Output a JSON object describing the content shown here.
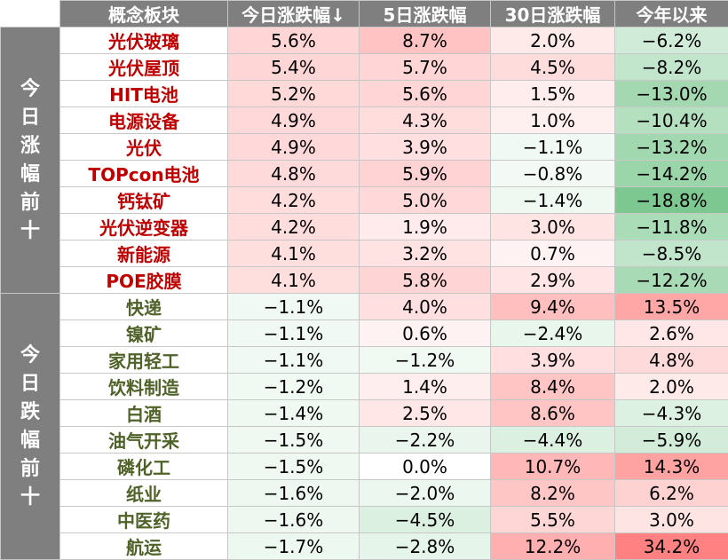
{
  "header": {
    "col_sector": "概念板块",
    "col_today": "今日涨跌幅↓",
    "col_5d": "5日涨跌幅",
    "col_30d": "30日涨跌幅",
    "col_ytd": "今年以来"
  },
  "groups": [
    {
      "label": [
        "今",
        "日",
        "涨",
        "幅",
        "前",
        "十"
      ],
      "kind": "gain",
      "rows": [
        {
          "name": "光伏玻璃",
          "today": "5.6%",
          "d5": "8.7%",
          "d30": "2.0%",
          "ytd": "−6.2%"
        },
        {
          "name": "光伏屋顶",
          "today": "5.4%",
          "d5": "5.7%",
          "d30": "4.5%",
          "ytd": "−8.2%"
        },
        {
          "name": "HIT电池",
          "today": "5.2%",
          "d5": "5.6%",
          "d30": "1.5%",
          "ytd": "−13.0%"
        },
        {
          "name": "电源设备",
          "today": "4.9%",
          "d5": "4.3%",
          "d30": "1.0%",
          "ytd": "−10.4%"
        },
        {
          "name": "光伏",
          "today": "4.9%",
          "d5": "3.9%",
          "d30": "−1.1%",
          "ytd": "−13.2%"
        },
        {
          "name": "TOPcon电池",
          "today": "4.8%",
          "d5": "5.9%",
          "d30": "−0.8%",
          "ytd": "−14.2%"
        },
        {
          "name": "钙钛矿",
          "today": "4.2%",
          "d5": "5.0%",
          "d30": "−1.4%",
          "ytd": "−18.8%"
        },
        {
          "name": "光伏逆变器",
          "today": "4.2%",
          "d5": "1.9%",
          "d30": "3.0%",
          "ytd": "−11.8%"
        },
        {
          "name": "新能源",
          "today": "4.1%",
          "d5": "3.2%",
          "d30": "0.7%",
          "ytd": "−8.5%"
        },
        {
          "name": "POE胶膜",
          "today": "4.1%",
          "d5": "5.8%",
          "d30": "2.9%",
          "ytd": "−12.2%"
        }
      ]
    },
    {
      "label": [
        "今",
        "日",
        "跌",
        "幅",
        "前",
        "十"
      ],
      "kind": "loss",
      "rows": [
        {
          "name": "快递",
          "today": "−1.1%",
          "d5": "4.0%",
          "d30": "9.4%",
          "ytd": "13.5%"
        },
        {
          "name": "镍矿",
          "today": "−1.1%",
          "d5": "0.6%",
          "d30": "−2.4%",
          "ytd": "2.6%"
        },
        {
          "name": "家用轻工",
          "today": "−1.1%",
          "d5": "−1.2%",
          "d30": "3.9%",
          "ytd": "4.8%"
        },
        {
          "name": "饮料制造",
          "today": "−1.2%",
          "d5": "1.4%",
          "d30": "8.4%",
          "ytd": "2.0%"
        },
        {
          "name": "白酒",
          "today": "−1.4%",
          "d5": "2.5%",
          "d30": "8.6%",
          "ytd": "−4.3%"
        },
        {
          "name": "油气开采",
          "today": "−1.5%",
          "d5": "−2.2%",
          "d30": "−4.4%",
          "ytd": "−5.9%"
        },
        {
          "name": "磷化工",
          "today": "−1.5%",
          "d5": "0.0%",
          "d30": "10.7%",
          "ytd": "14.3%"
        },
        {
          "name": "纸业",
          "today": "−1.6%",
          "d5": "−2.0%",
          "d30": "8.2%",
          "ytd": "6.2%"
        },
        {
          "name": "中医药",
          "today": "−1.6%",
          "d5": "−4.5%",
          "d30": "5.5%",
          "ytd": "3.0%"
        },
        {
          "name": "航运",
          "today": "−1.7%",
          "d5": "−2.8%",
          "d30": "12.2%",
          "ytd": "34.2%"
        }
      ]
    }
  ]
}
